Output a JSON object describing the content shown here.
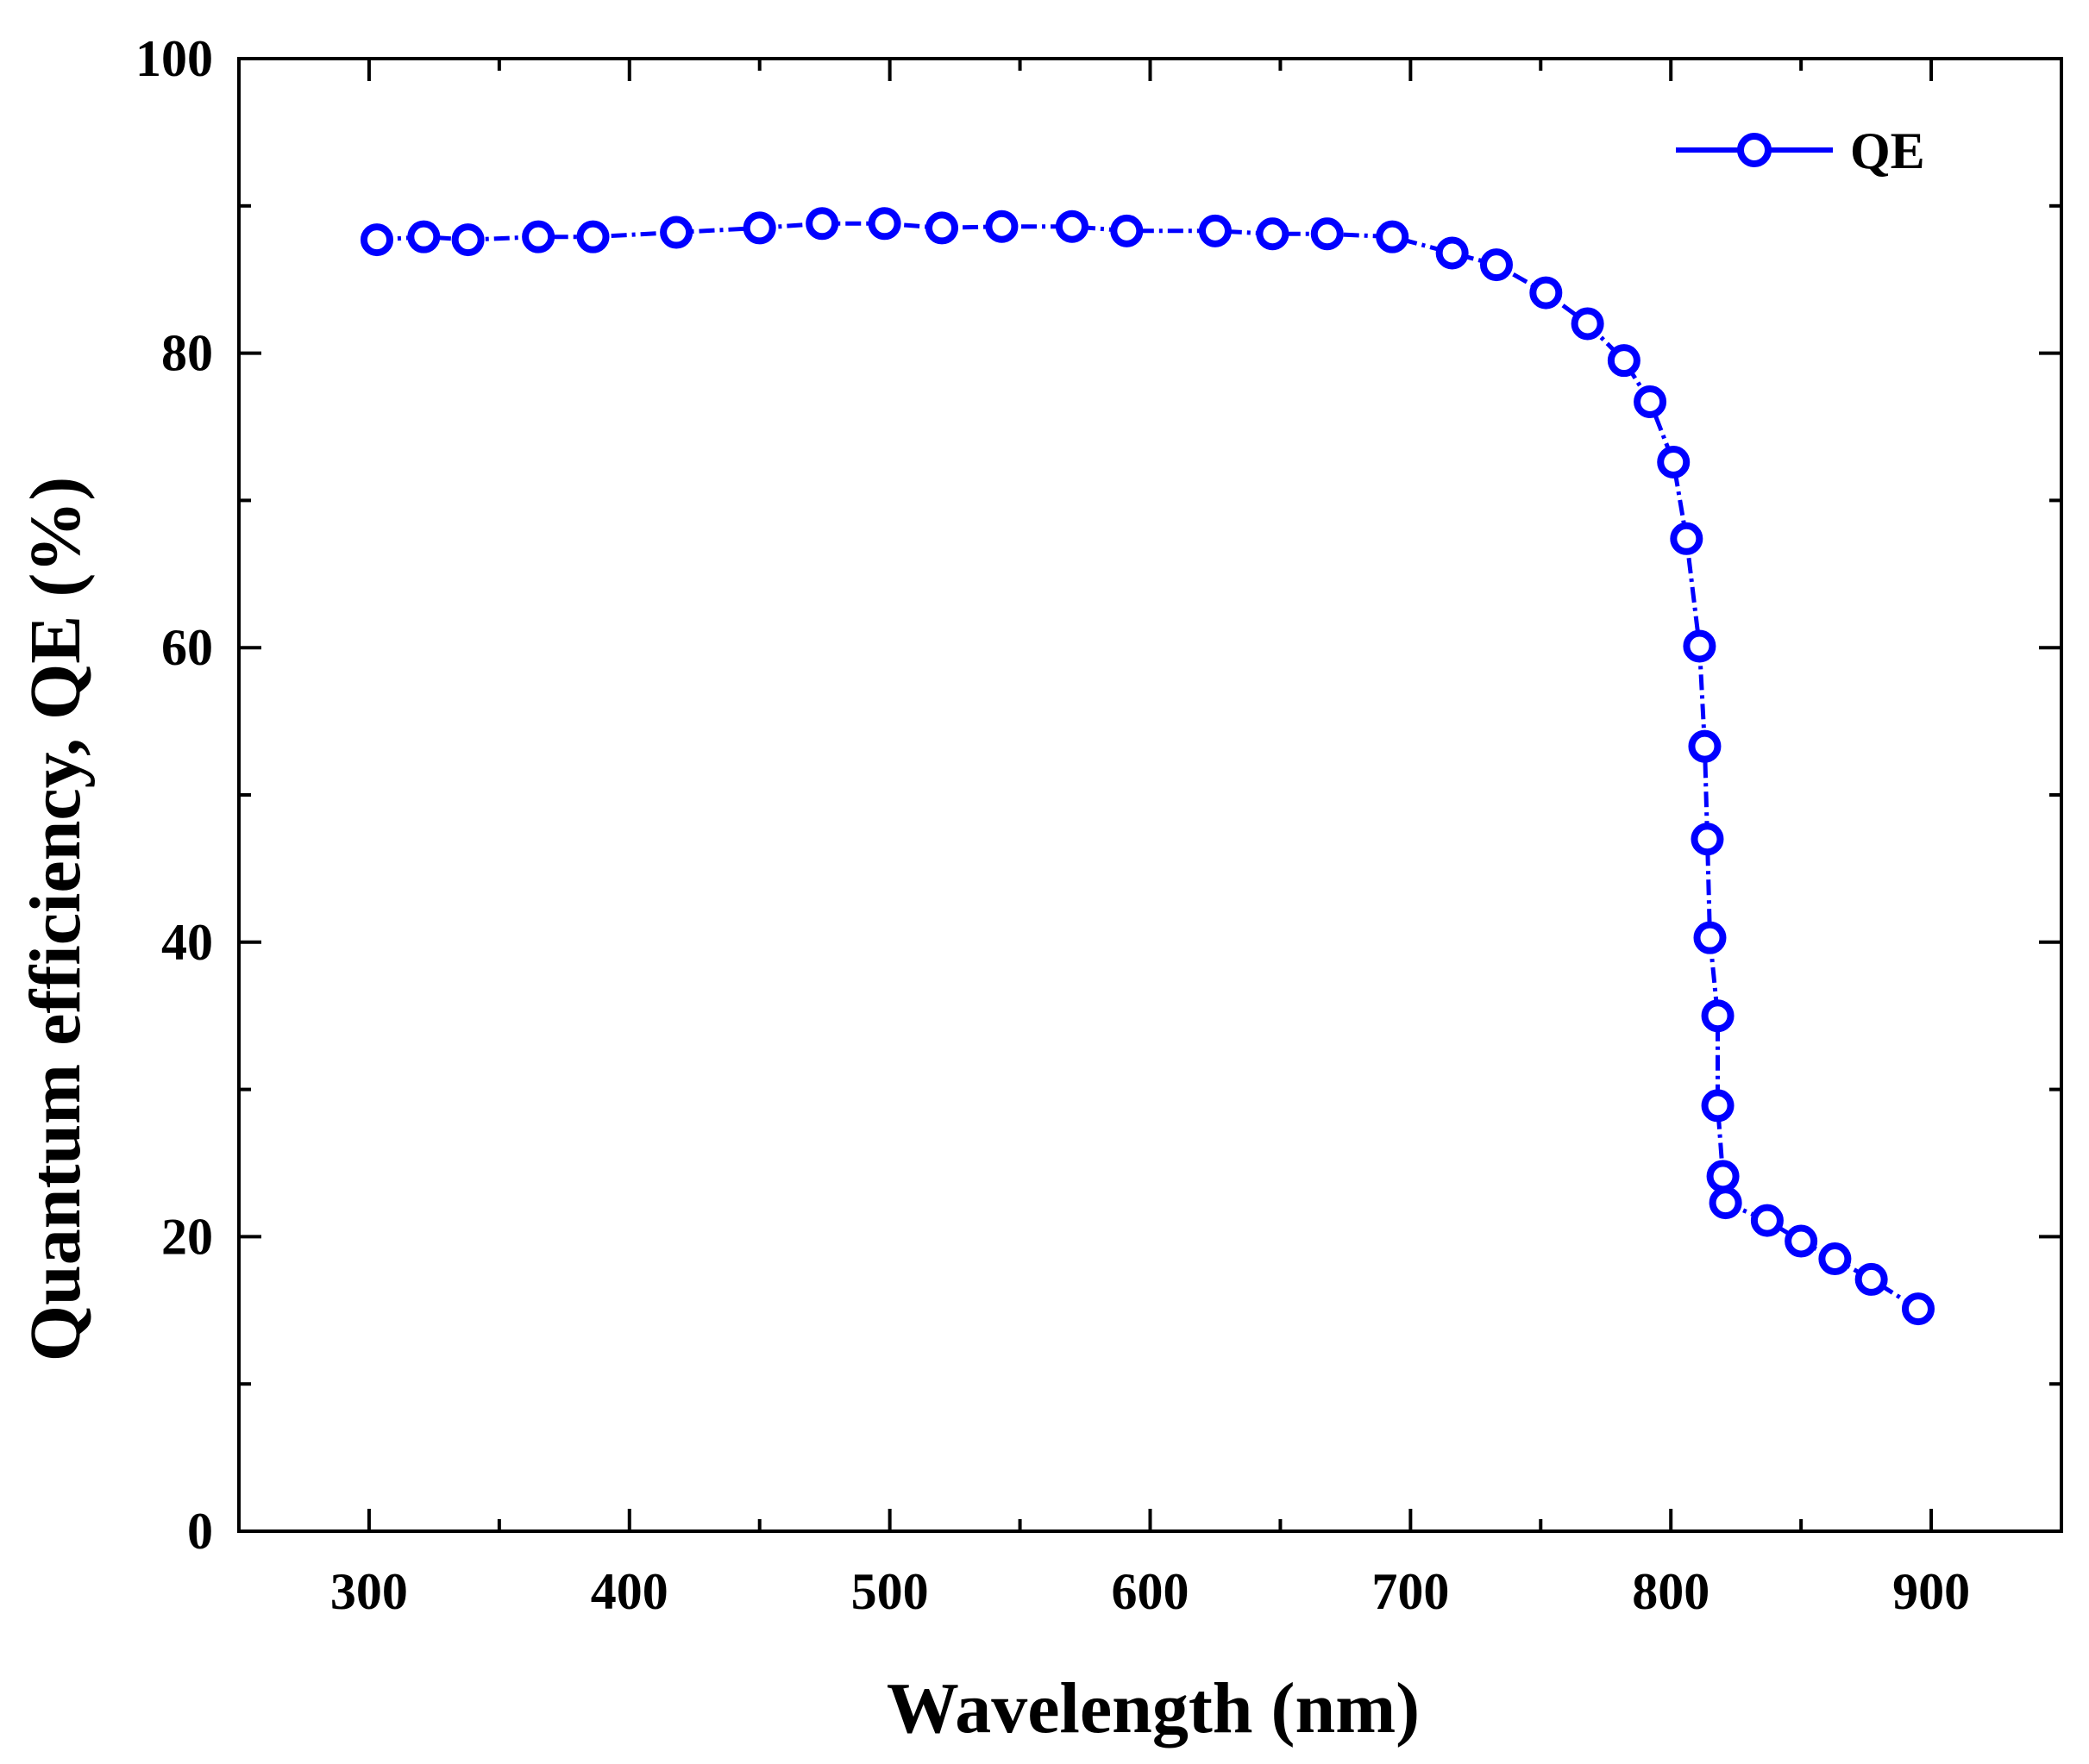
{
  "colors": {
    "series": "#0000ff",
    "axis": "#000000",
    "background": "#ffffff"
  },
  "chart_data": {
    "type": "line",
    "title": "",
    "xlabel": "Wavelength (nm)",
    "ylabel": "Quantum efficiency, QE (%)",
    "xlim": [
      250,
      950
    ],
    "ylim": [
      0,
      100
    ],
    "xticks": [
      300,
      400,
      500,
      600,
      700,
      800,
      900
    ],
    "xticks_minor": [
      350,
      450,
      550,
      650,
      750,
      850
    ],
    "yticks": [
      0,
      20,
      40,
      60,
      80,
      100
    ],
    "yticks_minor": [
      10,
      30,
      50,
      70,
      90
    ],
    "grid": false,
    "legend": {
      "position": "top-right",
      "entries": [
        "QE"
      ]
    },
    "series": [
      {
        "name": "QE",
        "marker": "open-circle",
        "x": [
          303,
          321,
          338,
          365,
          386,
          418,
          450,
          474,
          498,
          520,
          543,
          570,
          591,
          625,
          647,
          668,
          693,
          716,
          733,
          752,
          768,
          782,
          792,
          801,
          806,
          811,
          813,
          814,
          815,
          818,
          818,
          820,
          821,
          837,
          850,
          863,
          877,
          895
        ],
        "y": [
          87.7,
          87.9,
          87.7,
          87.9,
          87.9,
          88.2,
          88.5,
          88.8,
          88.8,
          88.5,
          88.6,
          88.6,
          88.3,
          88.3,
          88.1,
          88.1,
          87.9,
          86.8,
          86.0,
          84.1,
          82.0,
          79.5,
          76.7,
          72.6,
          67.4,
          60.1,
          53.3,
          47.0,
          40.3,
          35.0,
          28.9,
          24.1,
          22.3,
          21.1,
          19.7,
          18.5,
          17.1,
          15.1
        ]
      }
    ]
  }
}
